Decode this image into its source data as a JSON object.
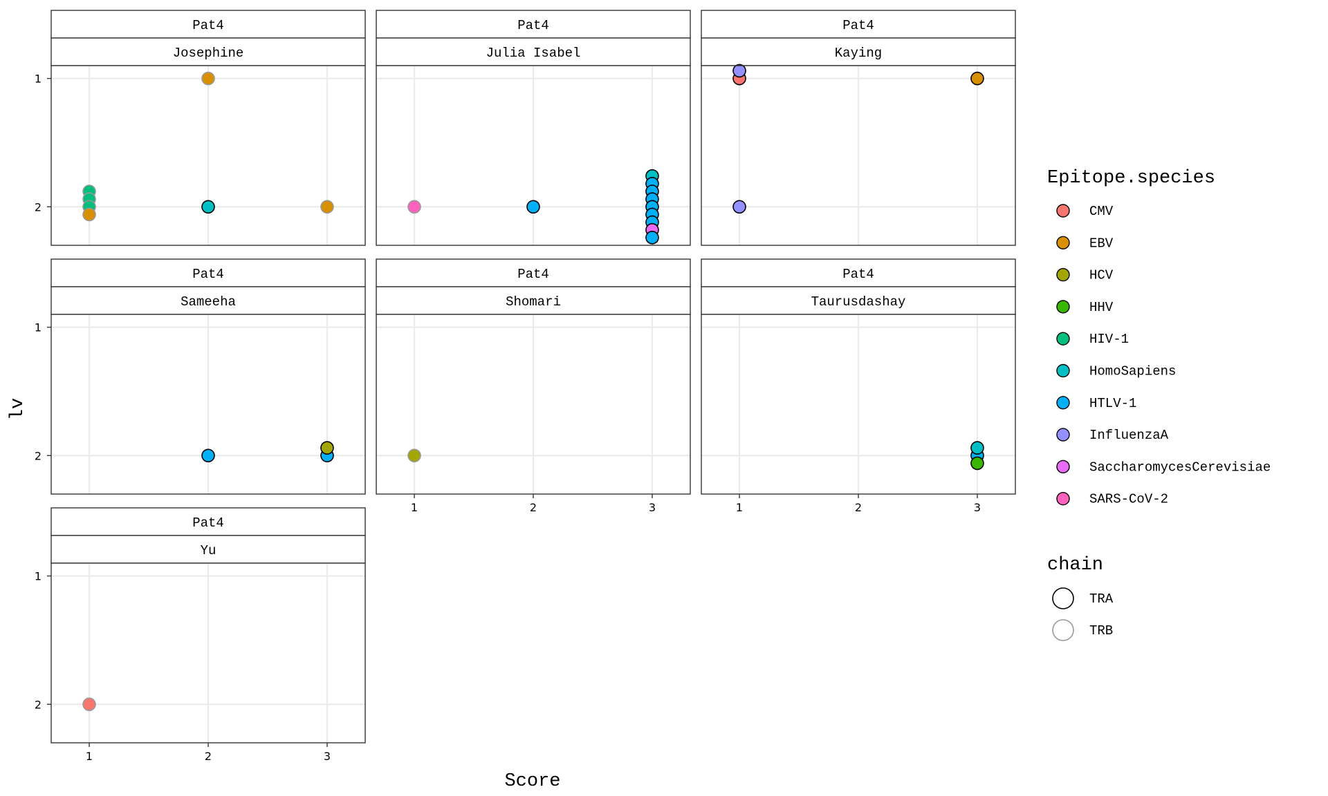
{
  "chart_data": {
    "type": "scatter",
    "xlabel": "Score",
    "ylabel": "lv",
    "x_ticks": [
      "1",
      "2",
      "3"
    ],
    "y_ticks": [
      "1",
      "2"
    ],
    "xlim": [
      0.68,
      3.32
    ],
    "ylim": [
      0.9,
      2.3
    ],
    "grid": true,
    "legend_position": "right",
    "legends": {
      "fill": {
        "title": "Epitope.species",
        "entries": [
          {
            "label": "CMV",
            "color": "#F8766D"
          },
          {
            "label": "EBV",
            "color": "#D89000"
          },
          {
            "label": "HCV",
            "color": "#A3A500"
          },
          {
            "label": "HHV",
            "color": "#39B600"
          },
          {
            "label": "HIV-1",
            "color": "#00BF7D"
          },
          {
            "label": "HomoSapiens",
            "color": "#00BFC4"
          },
          {
            "label": "HTLV-1",
            "color": "#00B0F6"
          },
          {
            "label": "InfluenzaA",
            "color": "#9590FF"
          },
          {
            "label": "SaccharomycesCerevisiae",
            "color": "#E76BF3"
          },
          {
            "label": "SARS-CoV-2",
            "color": "#FF62BC"
          }
        ]
      },
      "chain": {
        "title": "chain",
        "entries": [
          {
            "label": "TRA",
            "stroke": "#000000"
          },
          {
            "label": "TRB",
            "stroke": "#999999"
          }
        ]
      }
    },
    "panels": [
      {
        "strip1": "Pat4",
        "strip2": "Josephine",
        "points": [
          {
            "x": 2,
            "y": 1.0,
            "species": "EBV",
            "chain": "TRB"
          },
          {
            "x": 1,
            "y": 1.88,
            "species": "HIV-1",
            "chain": "TRB"
          },
          {
            "x": 1,
            "y": 1.94,
            "species": "HIV-1",
            "chain": "TRB"
          },
          {
            "x": 1,
            "y": 2.0,
            "species": "HIV-1",
            "chain": "TRB"
          },
          {
            "x": 1,
            "y": 2.06,
            "species": "EBV",
            "chain": "TRB"
          },
          {
            "x": 2,
            "y": 2.0,
            "species": "HomoSapiens",
            "chain": "TRA"
          },
          {
            "x": 3,
            "y": 2.0,
            "species": "EBV",
            "chain": "TRB"
          }
        ]
      },
      {
        "strip1": "Pat4",
        "strip2": "Julia Isabel",
        "points": [
          {
            "x": 1,
            "y": 2.0,
            "species": "SARS-CoV-2",
            "chain": "TRB"
          },
          {
            "x": 2,
            "y": 2.0,
            "species": "HTLV-1",
            "chain": "TRA"
          },
          {
            "x": 3,
            "y": 1.76,
            "species": "HomoSapiens",
            "chain": "TRA"
          },
          {
            "x": 3,
            "y": 1.82,
            "species": "HTLV-1",
            "chain": "TRA"
          },
          {
            "x": 3,
            "y": 1.88,
            "species": "HTLV-1",
            "chain": "TRA"
          },
          {
            "x": 3,
            "y": 1.94,
            "species": "HTLV-1",
            "chain": "TRA"
          },
          {
            "x": 3,
            "y": 2.0,
            "species": "HTLV-1",
            "chain": "TRA"
          },
          {
            "x": 3,
            "y": 2.06,
            "species": "HTLV-1",
            "chain": "TRA"
          },
          {
            "x": 3,
            "y": 2.12,
            "species": "HTLV-1",
            "chain": "TRA"
          },
          {
            "x": 3,
            "y": 2.18,
            "species": "SaccharomycesCerevisiae",
            "chain": "TRA"
          },
          {
            "x": 3,
            "y": 2.24,
            "species": "HTLV-1",
            "chain": "TRA"
          }
        ]
      },
      {
        "strip1": "Pat4",
        "strip2": "Kaying",
        "points": [
          {
            "x": 1,
            "y": 1.0,
            "species": "CMV",
            "chain": "TRA"
          },
          {
            "x": 1,
            "y": 0.94,
            "species": "InfluenzaA",
            "chain": "TRA"
          },
          {
            "x": 3,
            "y": 1.0,
            "species": "EBV",
            "chain": "TRA"
          },
          {
            "x": 1,
            "y": 2.0,
            "species": "InfluenzaA",
            "chain": "TRA"
          }
        ]
      },
      {
        "strip1": "Pat4",
        "strip2": "Sameeha",
        "points": [
          {
            "x": 2,
            "y": 2.0,
            "species": "HTLV-1",
            "chain": "TRA"
          },
          {
            "x": 3,
            "y": 2.0,
            "species": "HTLV-1",
            "chain": "TRA"
          },
          {
            "x": 3,
            "y": 1.94,
            "species": "HCV",
            "chain": "TRA"
          }
        ]
      },
      {
        "strip1": "Pat4",
        "strip2": "Shomari",
        "points": [
          {
            "x": 1,
            "y": 2.0,
            "species": "HCV",
            "chain": "TRB"
          }
        ]
      },
      {
        "strip1": "Pat4",
        "strip2": "Taurusdashay",
        "points": [
          {
            "x": 3,
            "y": 2.0,
            "species": "HTLV-1",
            "chain": "TRA"
          },
          {
            "x": 3,
            "y": 1.94,
            "species": "HomoSapiens",
            "chain": "TRA"
          },
          {
            "x": 3,
            "y": 2.06,
            "species": "HHV",
            "chain": "TRA"
          }
        ]
      },
      {
        "strip1": "Pat4",
        "strip2": "Yu",
        "points": [
          {
            "x": 1,
            "y": 2.0,
            "species": "CMV",
            "chain": "TRB"
          }
        ]
      }
    ]
  }
}
